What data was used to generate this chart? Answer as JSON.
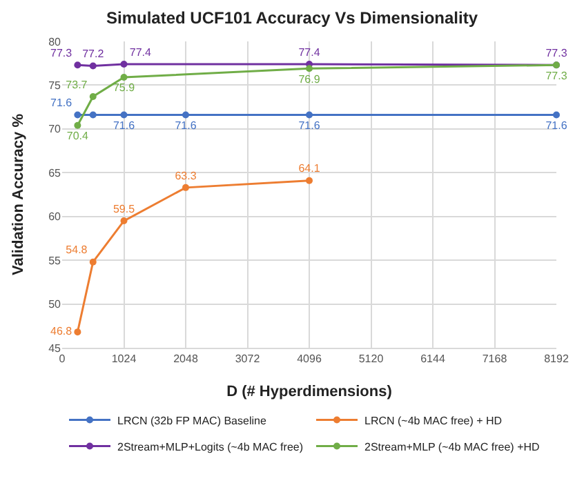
{
  "chart_data": {
    "type": "line",
    "title": "Simulated UCF101 Accuracy Vs Dimensionality",
    "xlabel": "D (# Hyperdimensions)",
    "ylabel": "Validation Accuracy %",
    "xlim": [
      0,
      8192
    ],
    "xticks": [
      0,
      1024,
      2048,
      3072,
      4096,
      5120,
      6144,
      7168,
      8192
    ],
    "ylim": [
      45,
      80
    ],
    "yticks": [
      45,
      50,
      55,
      60,
      65,
      70,
      75,
      80
    ],
    "grid": true,
    "legend": "bottom",
    "marker": "circle",
    "line_style": "solid",
    "series": [
      {
        "name": "LRCN (32b FP MAC) Baseline",
        "color": "#4472c4",
        "x": [
          256,
          512,
          1024,
          2048,
          4096,
          8192
        ],
        "values": [
          71.6,
          71.6,
          71.6,
          71.6,
          71.6,
          71.6
        ],
        "value_labels": [
          "71.6",
          null,
          "71.6",
          "71.6",
          "71.6",
          "71.6"
        ]
      },
      {
        "name": "LRCN (~4b MAC free) + HD",
        "color": "#ed7d31",
        "x": [
          256,
          512,
          1024,
          2048,
          4096
        ],
        "values": [
          46.8,
          54.8,
          59.5,
          63.3,
          64.1
        ],
        "value_labels": [
          "46.8",
          "54.8",
          "59.5",
          "63.3",
          "64.1"
        ]
      },
      {
        "name": "2Stream+MLP+Logits (~4b MAC free)",
        "color": "#7030a0",
        "x": [
          256,
          512,
          1024,
          4096,
          8192
        ],
        "values": [
          77.3,
          77.2,
          77.4,
          77.4,
          77.3
        ],
        "value_labels": [
          "77.3",
          "77.2",
          "77.4",
          "77.4",
          "77.3"
        ]
      },
      {
        "name": "2Stream+MLP (~4b MAC free) +HD",
        "color": "#70ad47",
        "x": [
          256,
          512,
          1024,
          4096,
          8192
        ],
        "values": [
          70.4,
          73.7,
          75.9,
          76.9,
          77.3
        ],
        "value_labels": [
          "70.4",
          "73.7",
          "75.9",
          "76.9",
          "77.3"
        ]
      }
    ]
  }
}
